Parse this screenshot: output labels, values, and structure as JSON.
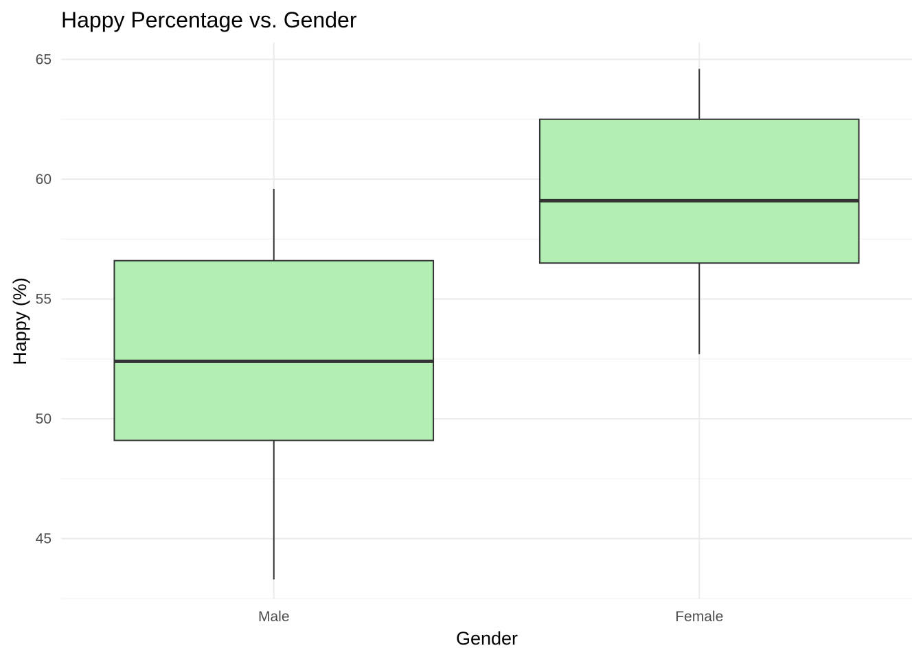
{
  "chart_data": {
    "type": "boxplot",
    "title": "Happy Percentage vs. Gender",
    "xlabel": "Gender",
    "ylabel": "Happy (%)",
    "categories": [
      "Male",
      "Female"
    ],
    "boxes": [
      {
        "category": "Male",
        "min": 43.3,
        "q1": 49.1,
        "median": 52.4,
        "q3": 56.6,
        "max": 59.6
      },
      {
        "category": "Female",
        "min": 52.7,
        "q1": 56.5,
        "median": 59.1,
        "q3": 62.5,
        "max": 64.6
      }
    ],
    "ylim": [
      42.5,
      65.7
    ],
    "yticks": [
      45,
      50,
      55,
      60,
      65
    ],
    "grid": true,
    "colors": {
      "box_fill": "#b3eeb3",
      "box_stroke": "#333333",
      "grid_major": "#ebebeb",
      "grid_minor": "#f3f3f3"
    }
  }
}
